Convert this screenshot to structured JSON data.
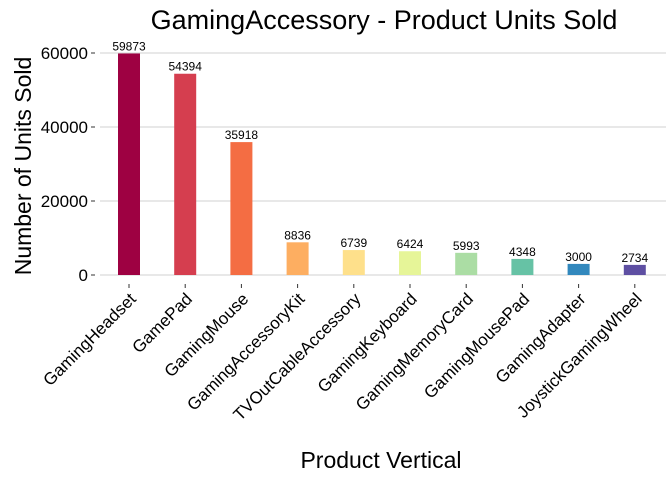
{
  "chart_data": {
    "type": "bar",
    "title": "GamingAccessory - Product Units Sold",
    "xlabel": "Product Vertical",
    "ylabel": "Number of Units Sold",
    "categories": [
      "GamingHeadset",
      "GamePad",
      "GamingMouse",
      "GamingAccessoryKit",
      "TVOutCableAccessory",
      "GamingKeyboard",
      "GamingMemoryCard",
      "GamingMousePad",
      "GamingAdapter",
      "JoystickGamingWheel"
    ],
    "values": [
      59873,
      54394,
      35918,
      8836,
      6739,
      6424,
      5993,
      4348,
      3000,
      2734
    ],
    "colors": [
      "#9E0142",
      "#D53E4F",
      "#F46D43",
      "#FDAE61",
      "#FEE08B",
      "#E6F598",
      "#ABDDA4",
      "#66C2A5",
      "#3288BD",
      "#5E4FA2"
    ],
    "y_ticks": [
      0,
      20000,
      40000,
      60000
    ],
    "ylim": [
      0,
      62000
    ],
    "grid": true,
    "legend": "none"
  }
}
